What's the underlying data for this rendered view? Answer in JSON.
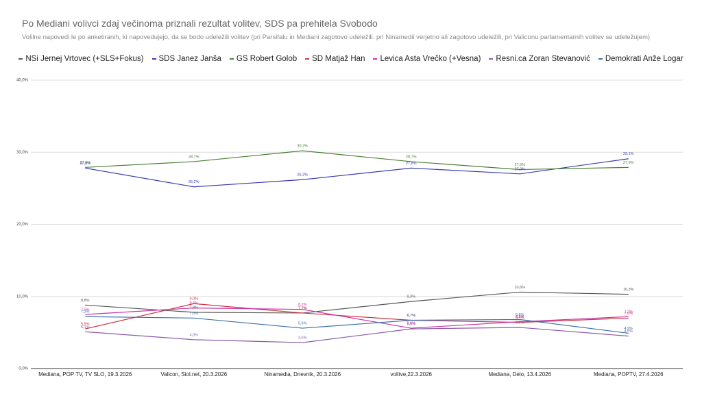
{
  "chart_data": {
    "type": "line",
    "title": "Po Mediani volivci zdaj večinoma priznali rezultat volitev, SDS pa prehitela Svobodo",
    "subtitle": "Volilne napovedi le po anketiranih, ki napovedujejo, da se bodo udeležili volitev (pri Parsifalu in Mediani zagotovo udeležili.  pri Ninamedii verjetno ali zagotovo udeležili, pri Valiconu parlamentarnih volitev se udeležujem)",
    "categories": [
      "Mediana, POP TV, TV SLO, 19.3.2026",
      "Valicon, Siol.net, 20.3.2026",
      "Ninamedia, Dnevnik, 20.3.2026",
      "volitve,22.3.2026",
      "Mediana, Delo, 13.4.2026",
      "Mediana, POPTV, 27.4.2026"
    ],
    "ylim": [
      0,
      40
    ],
    "yticks": [
      {
        "value": 0,
        "label": "0,0%"
      },
      {
        "value": 10,
        "label": "10,0%"
      },
      {
        "value": 20,
        "label": "20,0%"
      },
      {
        "value": 30,
        "label": "30,0%"
      },
      {
        "value": 40,
        "label": "40,0%"
      }
    ],
    "grid": true,
    "legend": "top",
    "series": [
      {
        "name": "NSi Jernej Vrtovec (+SLS+Fokus)",
        "color": "#555555",
        "values": [
          8.8,
          7.8,
          7.7,
          9.3,
          10.6,
          10.3
        ],
        "value_labels": [
          "8,8%",
          "7,8%",
          "7,7%",
          "9,3%",
          "10,6%",
          "10,3%"
        ]
      },
      {
        "name": "SDS Janez Janša",
        "color": "#3b3bb3",
        "values": [
          27.8,
          25.2,
          26.2,
          27.8,
          27.0,
          29.1
        ],
        "value_labels": [
          "27,8%",
          "25,2%",
          "26,2%",
          "27,8%",
          "27,0%",
          "29,1%"
        ]
      },
      {
        "name": "GS Robert Golob",
        "color": "#4a7f35",
        "values": [
          27.9,
          28.7,
          30.2,
          28.7,
          27.6,
          27.9
        ],
        "value_labels": [
          "27,9%",
          "28,7%",
          "30,2%",
          "28,7%",
          "27,6%",
          "27,9%"
        ]
      },
      {
        "name": "SD Matjaž Han",
        "color": "#cc3344",
        "values": [
          5.5,
          9.0,
          7.7,
          6.7,
          6.4,
          7.0
        ],
        "value_labels": [
          "5,5%",
          "9,0%",
          "7,7%",
          "6,7%",
          "6,4%",
          "7,0%"
        ]
      },
      {
        "name": "Levica Asta Vrečko (+Vesna)",
        "color": "#cc33aa",
        "values": [
          7.5,
          8.4,
          8.2,
          5.6,
          6.5,
          7.2
        ],
        "value_labels": [
          "7,5%",
          "8,4%",
          "8,2%",
          "5,6%",
          "6,5%",
          "7,2%"
        ]
      },
      {
        "name": "Resni.ca Zoran Stevanović",
        "color": "#8a5aaa",
        "values": [
          5.1,
          4.0,
          3.6,
          5.5,
          5.7,
          4.5
        ],
        "value_labels": [
          "5,1%",
          "4,0%",
          "3,6%",
          "5,5%",
          "5,7%",
          "4,5%"
        ]
      },
      {
        "name": "Demokrati Anže Logar",
        "color": "#3a70a8",
        "values": [
          7.2,
          7.0,
          5.6,
          6.7,
          6.8,
          4.9
        ],
        "value_labels": [
          "7,2%",
          "7,0%",
          "5,6%",
          "6,7%",
          "6,8%",
          "4,9%"
        ]
      }
    ]
  }
}
